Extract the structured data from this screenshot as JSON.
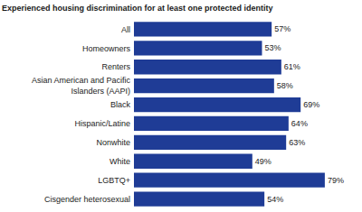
{
  "chart_data": {
    "type": "bar",
    "title": "Experienced housing discrimination for at least one protected identity",
    "orientation": "horizontal",
    "categories": [
      "All",
      "Homeowners",
      "Renters",
      "Asian American and Pacific Islanders (AAPI)",
      "Black",
      "Hispanic/Latine",
      "Nonwhite",
      "White",
      "LGBTQ+",
      "Cisgender heterosexual"
    ],
    "values": [
      57,
      53,
      61,
      58,
      69,
      64,
      63,
      49,
      79,
      54
    ],
    "value_labels": [
      "57%",
      "53%",
      "61%",
      "58%",
      "69%",
      "64%",
      "63%",
      "49%",
      "79%",
      "54%"
    ],
    "data_labels": true,
    "tick_labels": "y",
    "grid": false,
    "color": "#1f3c96"
  }
}
